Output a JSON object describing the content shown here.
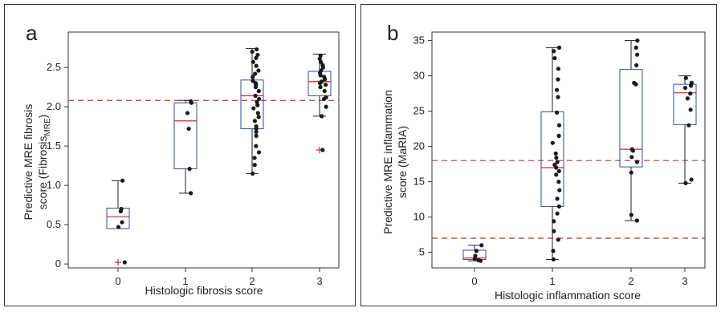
{
  "chart_data": [
    {
      "type": "box",
      "panel_label": "a",
      "xlabel": "Histologic fibrosis score",
      "ylabel_line1": "Predictive MRE fibrosis",
      "ylabel_line2_main": "score (Fibrosis",
      "ylabel_line2_sub": "MRE",
      "ylabel_line2_end": ")",
      "categories": [
        "0",
        "1",
        "2",
        "3"
      ],
      "ylim": [
        -0.05,
        2.95
      ],
      "yticks": [
        "0",
        "0.5",
        "1.0",
        "1.5",
        "2.0",
        "2.5"
      ],
      "ytick_values": [
        0,
        0.5,
        1.0,
        1.5,
        2.0,
        2.5
      ],
      "threshold_lines": [
        2.08
      ],
      "boxes": [
        {
          "category": "0",
          "whisker_low": 0.45,
          "q1": 0.45,
          "median": 0.6,
          "q3": 0.71,
          "whisker_high": 1.06,
          "outliers": [
            0.02
          ]
        },
        {
          "category": "1",
          "whisker_low": 0.9,
          "q1": 1.21,
          "median": 1.82,
          "q3": 2.05,
          "whisker_high": 2.08,
          "outliers": []
        },
        {
          "category": "2",
          "whisker_low": 1.15,
          "q1": 1.72,
          "median": 2.14,
          "q3": 2.34,
          "whisker_high": 2.74,
          "outliers": []
        },
        {
          "category": "3",
          "whisker_low": 1.88,
          "q1": 2.14,
          "median": 2.32,
          "q3": 2.45,
          "whisker_high": 2.67,
          "outliers": [
            1.45
          ]
        }
      ],
      "points": [
        {
          "category": "0",
          "values": [
            0.02,
            0.47,
            0.53,
            0.67,
            0.7,
            1.06
          ]
        },
        {
          "category": "1",
          "values": [
            0.9,
            1.21,
            1.72,
            1.92,
            2.05,
            2.07
          ]
        },
        {
          "category": "2",
          "values": [
            1.15,
            1.26,
            1.35,
            1.42,
            1.5,
            1.63,
            1.68,
            1.72,
            1.75,
            1.82,
            1.87,
            1.92,
            1.98,
            2.02,
            2.06,
            2.1,
            2.14,
            2.2,
            2.25,
            2.28,
            2.3,
            2.33,
            2.38,
            2.42,
            2.46,
            2.52,
            2.57,
            2.62,
            2.66,
            2.7,
            2.73
          ]
        },
        {
          "category": "3",
          "values": [
            1.45,
            1.88,
            2.0,
            2.1,
            2.12,
            2.2,
            2.25,
            2.28,
            2.3,
            2.32,
            2.35,
            2.38,
            2.4,
            2.43,
            2.46,
            2.5,
            2.53,
            2.57,
            2.61,
            2.65
          ]
        }
      ]
    },
    {
      "type": "box",
      "panel_label": "b",
      "xlabel": "Histologic inflammation score",
      "ylabel_line1": "Predictive MRE inflammation",
      "ylabel_line2_main": "score (MaRIA)",
      "categories": [
        "0",
        "1",
        "2",
        "3"
      ],
      "ylim": [
        2.8,
        36.2
      ],
      "yticks": [
        "5",
        "10",
        "15",
        "20",
        "25",
        "30",
        "35"
      ],
      "ytick_values": [
        5,
        10,
        15,
        20,
        25,
        30,
        35
      ],
      "threshold_lines": [
        7,
        18
      ],
      "boxes": [
        {
          "category": "0",
          "whisker_low": 3.8,
          "q1": 4.0,
          "median": 4.2,
          "q3": 5.3,
          "whisker_high": 6.0,
          "outliers": []
        },
        {
          "category": "1",
          "whisker_low": 4.0,
          "q1": 11.5,
          "median": 17.0,
          "q3": 24.9,
          "whisker_high": 34.0,
          "outliers": []
        },
        {
          "category": "2",
          "whisker_low": 9.5,
          "q1": 17.1,
          "median": 19.6,
          "q3": 30.9,
          "whisker_high": 35.0,
          "outliers": []
        },
        {
          "category": "3",
          "whisker_low": 14.8,
          "q1": 23.1,
          "median": 27.6,
          "q3": 28.8,
          "whisker_high": 30.0,
          "outliers": []
        }
      ],
      "points": [
        {
          "category": "0",
          "values": [
            3.8,
            3.9,
            4.1,
            4.5,
            5.2,
            6.0
          ]
        },
        {
          "category": "1",
          "values": [
            4.0,
            5.2,
            6.8,
            8.0,
            9.4,
            10.5,
            11.5,
            12.6,
            13.8,
            15.0,
            16.0,
            16.5,
            17.0,
            17.4,
            17.8,
            18.4,
            19.0,
            20.5,
            21.5,
            23.0,
            24.8,
            27.0,
            28.0,
            29.5,
            31.0,
            32.5,
            33.5,
            34.0
          ]
        },
        {
          "category": "2",
          "values": [
            9.5,
            10.3,
            16.3,
            17.8,
            18.5,
            19.4,
            19.6,
            28.8,
            29.0,
            31.5,
            33.0,
            34.0,
            35.0
          ]
        },
        {
          "category": "3",
          "values": [
            14.8,
            15.3,
            23.0,
            25.2,
            26.8,
            27.5,
            28.3,
            28.6,
            29.0,
            29.7
          ]
        }
      ]
    }
  ],
  "colors": {
    "box": "#2e4d9e",
    "median": "#d62728",
    "threshold": "#d62728",
    "outlier": "#d62728",
    "points": "#1a1a1a",
    "whisker": "#222222",
    "frame": "#333333"
  }
}
